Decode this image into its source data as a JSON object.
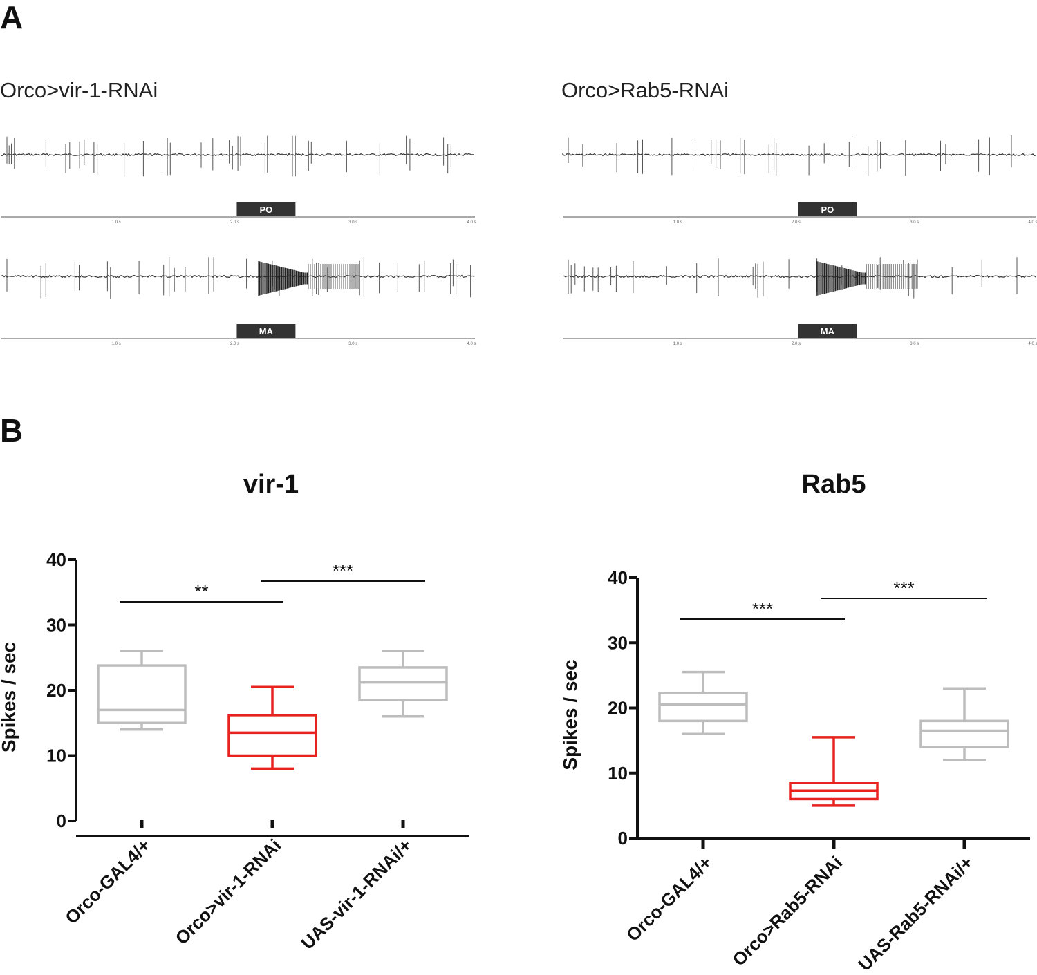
{
  "panels": {
    "a_label": "A",
    "b_label": "B"
  },
  "traces": [
    {
      "title": "Orco>vir-1-RNAi",
      "rows": [
        {
          "stimulus": "PO",
          "ticks": [
            "1.0 s",
            "2.0 s",
            "3.0 s",
            "4.0 s"
          ]
        },
        {
          "stimulus": "MA",
          "ticks": [
            "1.0 s",
            "2.0 s",
            "3.0 s",
            "4.0 s"
          ]
        }
      ]
    },
    {
      "title": "Orco>Rab5-RNAi",
      "rows": [
        {
          "stimulus": "PO",
          "ticks": [
            "1.0 s",
            "2.0 s",
            "3.0 s",
            "4.0 s"
          ]
        },
        {
          "stimulus": "MA",
          "ticks": [
            "1.0 s",
            "2.0 s",
            "3.0 s",
            "4.0 s"
          ]
        }
      ]
    }
  ],
  "chart_data": [
    {
      "type": "box",
      "title": "vir-1",
      "ylabel": "Spikes / sec",
      "ylim": [
        0,
        40
      ],
      "yticks": [
        0,
        10,
        20,
        30,
        40
      ],
      "categories": [
        "Orco-GAL4/+",
        "Orco>vir-1-RNAi",
        "UAS-vir-1-RNAi/+"
      ],
      "boxes": [
        {
          "min": 14,
          "q1": 15,
          "median": 17,
          "q3": 23.8,
          "max": 26,
          "color": "#bdbdbd"
        },
        {
          "min": 8,
          "q1": 10,
          "median": 13.5,
          "q3": 16.2,
          "max": 20.5,
          "color": "#e8231f"
        },
        {
          "min": 16,
          "q1": 18.5,
          "median": 21.2,
          "q3": 23.5,
          "max": 26,
          "color": "#bdbdbd"
        }
      ],
      "significance": [
        {
          "from": 0,
          "to": 1,
          "label": "**"
        },
        {
          "from": 1,
          "to": 2,
          "label": "***"
        }
      ]
    },
    {
      "type": "box",
      "title": "Rab5",
      "ylabel": "Spikes / sec",
      "ylim": [
        0,
        40
      ],
      "yticks": [
        0,
        10,
        20,
        30,
        40
      ],
      "categories": [
        "Orco-GAL4/+",
        "Orco>Rab5-RNAi",
        "UAS-Rab5-RNAi/+"
      ],
      "boxes": [
        {
          "min": 16,
          "q1": 18,
          "median": 20.5,
          "q3": 22.3,
          "max": 25.5,
          "color": "#bdbdbd"
        },
        {
          "min": 5,
          "q1": 6,
          "median": 7.3,
          "q3": 8.5,
          "max": 15.5,
          "color": "#e8231f"
        },
        {
          "min": 12,
          "q1": 14,
          "median": 16.5,
          "q3": 18,
          "max": 23,
          "color": "#bdbdbd"
        }
      ],
      "significance": [
        {
          "from": 0,
          "to": 1,
          "label": "***"
        },
        {
          "from": 1,
          "to": 2,
          "label": "***"
        }
      ]
    }
  ]
}
